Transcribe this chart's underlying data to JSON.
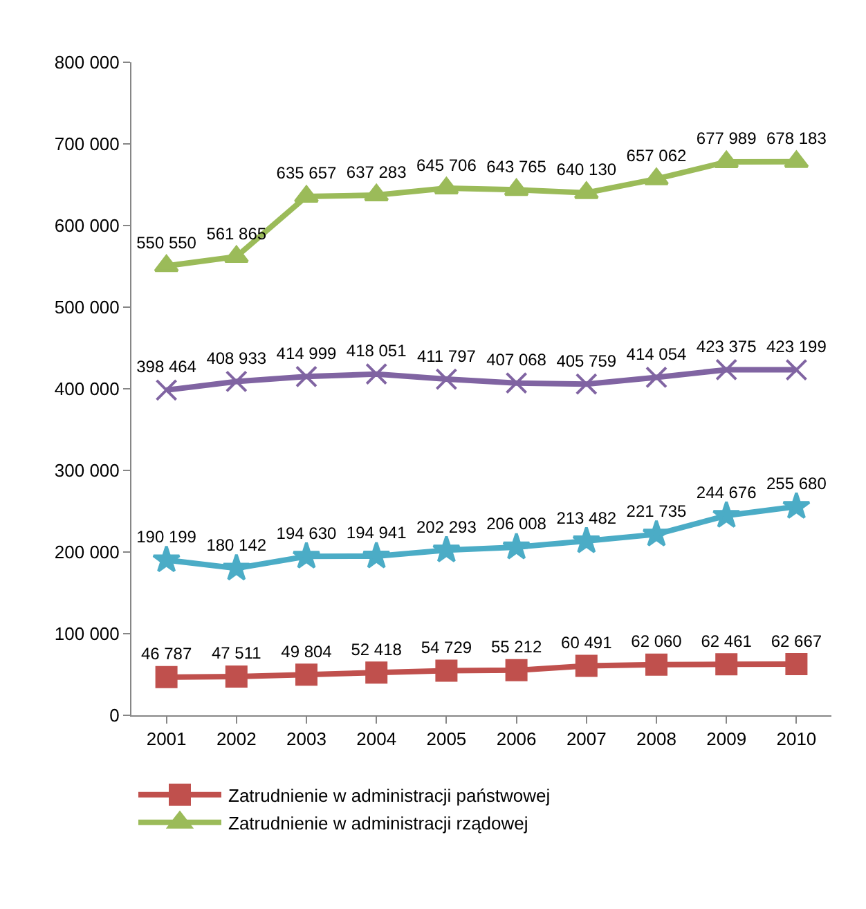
{
  "chart_data": {
    "type": "line",
    "categories": [
      "2001",
      "2002",
      "2003",
      "2004",
      "2005",
      "2006",
      "2007",
      "2008",
      "2009",
      "2010"
    ],
    "series": [
      {
        "name": "Zatrudnienie w administracji państwowej",
        "color": "#c0504d",
        "marker": "square",
        "values": [
          46787,
          47511,
          49804,
          52418,
          54729,
          55212,
          60491,
          62060,
          62461,
          62667
        ],
        "value_labels": [
          "46 787",
          "47 511",
          "49 804",
          "52 418",
          "54 729",
          "55 212",
          "60 491",
          "62 060",
          "62 461",
          "62 667"
        ]
      },
      {
        "name": "Zatrudnienie w administracji rządowej",
        "color": "#9bbb59",
        "marker": "triangle",
        "values": [
          550550,
          561865,
          635657,
          637283,
          645706,
          643765,
          640130,
          657062,
          677989,
          678183
        ],
        "value_labels": [
          "550 550",
          "561 865",
          "635 657",
          "637 283",
          "645 706",
          "643 765",
          "640 130",
          "657 062",
          "677 989",
          "678 183"
        ]
      },
      {
        "color": "#8064a2",
        "marker": "cross",
        "values": [
          398464,
          408933,
          414999,
          418051,
          411797,
          407068,
          405759,
          414054,
          423375,
          423199
        ],
        "value_labels": [
          "398 464",
          "408 933",
          "414 999",
          "418 051",
          "411 797",
          "407 068",
          "405 759",
          "414 054",
          "423 375",
          "423 199"
        ]
      },
      {
        "color": "#4bacc6",
        "marker": "star",
        "values": [
          190199,
          180142,
          194630,
          194941,
          202293,
          206008,
          213482,
          221735,
          244676,
          255680
        ],
        "value_labels": [
          "190 199",
          "180 142",
          "194 630",
          "194 941",
          "202 293",
          "206 008",
          "213 482",
          "221 735",
          "244 676",
          "255 680"
        ]
      }
    ],
    "ylim": [
      0,
      800000
    ],
    "yticks": [
      {
        "value": 0,
        "label": "0"
      },
      {
        "value": 100000,
        "label": "100 000"
      },
      {
        "value": 200000,
        "label": "200 000"
      },
      {
        "value": 300000,
        "label": "300 000"
      },
      {
        "value": 400000,
        "label": "400 000"
      },
      {
        "value": 500000,
        "label": "500 000"
      },
      {
        "value": 600000,
        "label": "600 000"
      },
      {
        "value": 700000,
        "label": "700 000"
      },
      {
        "value": 800000,
        "label": "800 000"
      }
    ],
    "legend": "bottom",
    "line_style": "solid"
  }
}
